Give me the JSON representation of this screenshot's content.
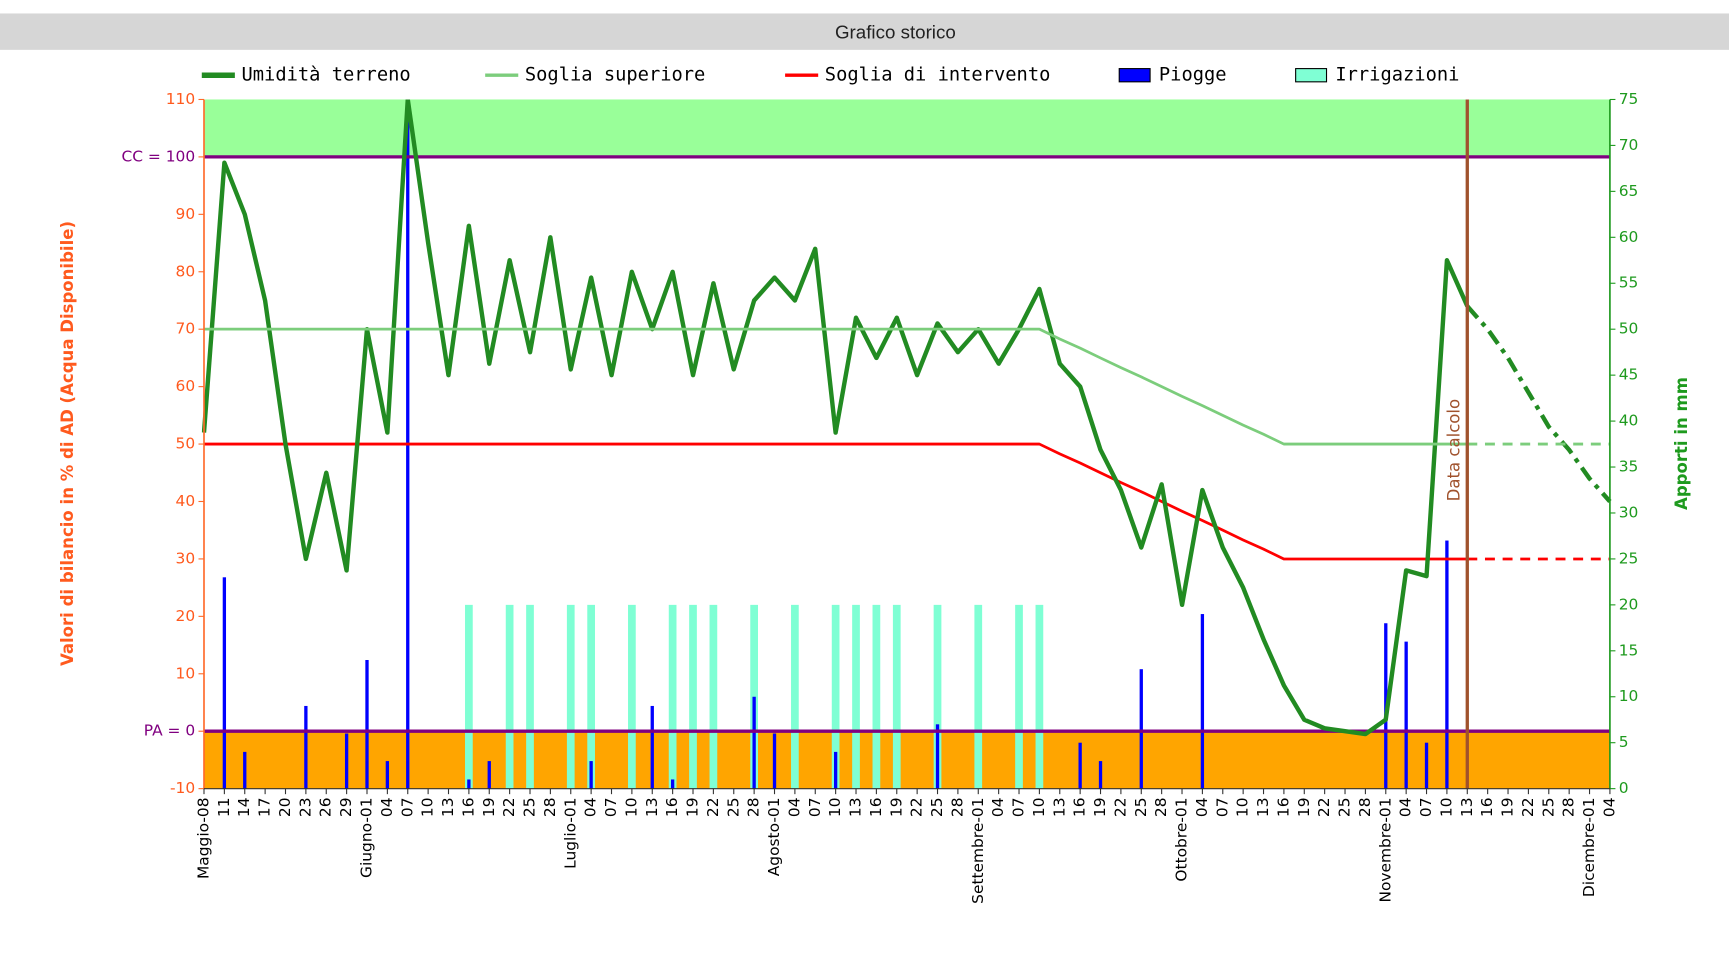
{
  "chart_data": {
    "type": "line",
    "title": "Grafico storico",
    "ylabel": "Valori di bilancio in % di AD (Acqua Disponibile)",
    "y2label": "Apporti in mm",
    "categories": [
      "Maggio-08",
      "11",
      "14",
      "17",
      "20",
      "23",
      "26",
      "29",
      "Giugno-01",
      "04",
      "07",
      "10",
      "13",
      "16",
      "19",
      "22",
      "25",
      "28",
      "Luglio-01",
      "04",
      "07",
      "10",
      "13",
      "16",
      "19",
      "22",
      "25",
      "28",
      "Agosto-01",
      "04",
      "07",
      "10",
      "13",
      "16",
      "19",
      "22",
      "25",
      "28",
      "Settembre-01",
      "04",
      "07",
      "10",
      "13",
      "16",
      "19",
      "22",
      "25",
      "28",
      "Ottobre-01",
      "04",
      "07",
      "10",
      "13",
      "16",
      "19",
      "22",
      "25",
      "28",
      "Novembre-01",
      "04",
      "07",
      "10",
      "13",
      "16",
      "19",
      "22",
      "25",
      "28",
      "Dicembre-01",
      "04"
    ],
    "ylim": [
      -10,
      110
    ],
    "yticks": [
      -10,
      {
        "value": 0,
        "label": "PA = 0"
      },
      10,
      20,
      30,
      40,
      50,
      60,
      70,
      80,
      90,
      {
        "value": 100,
        "label": "CC = 100"
      },
      110
    ],
    "y2lim": [
      0,
      75
    ],
    "y2ticks": [
      0,
      5,
      10,
      15,
      20,
      25,
      30,
      35,
      40,
      45,
      50,
      55,
      60,
      65,
      70,
      75
    ],
    "bands": [
      {
        "from": 100,
        "to": 110,
        "color": "#99ff99"
      },
      {
        "from": -10,
        "to": 0,
        "color": "#ffa500"
      }
    ],
    "reference_color": "#800080",
    "annotations": [
      {
        "text": "Data calcolo",
        "at": "chart_data.categories.62",
        "color": "#a0522d"
      }
    ],
    "series": [
      {
        "name": "Umidità terreno",
        "color": "#228b22",
        "values": [
          52,
          99,
          90,
          75,
          50,
          30,
          45,
          28,
          70,
          52,
          110,
          85,
          62,
          88,
          64,
          82,
          66,
          86,
          63,
          79,
          62,
          80,
          70,
          80,
          62,
          78,
          63,
          75,
          79,
          75,
          84,
          52,
          72,
          65,
          72,
          62,
          71,
          66,
          70,
          64,
          70,
          77,
          64,
          60,
          49,
          42,
          32,
          43,
          22,
          42,
          32,
          25,
          16,
          8,
          2,
          0.5,
          0,
          -0.5,
          2,
          28,
          27,
          82,
          74,
          70,
          65,
          59,
          53,
          49,
          44,
          40
        ]
      },
      {
        "name": "Soglia superiore",
        "color": "#7ccd7c",
        "values": [
          70,
          70,
          70,
          70,
          70,
          70,
          70,
          70,
          70,
          70,
          70,
          70,
          70,
          70,
          70,
          70,
          70,
          70,
          70,
          70,
          70,
          70,
          70,
          70,
          70,
          70,
          70,
          70,
          70,
          70,
          70,
          70,
          70,
          70,
          70,
          70,
          70,
          70,
          70,
          70,
          70,
          70,
          68.3,
          66.7,
          65,
          63.3,
          61.7,
          60,
          58.3,
          56.7,
          55,
          53.3,
          51.7,
          50,
          50,
          50,
          50,
          50,
          50,
          50,
          50,
          50,
          50,
          50,
          50,
          50,
          50,
          50,
          50,
          50
        ]
      },
      {
        "name": "Soglia di intervento",
        "color": "#ff0000",
        "values": [
          50,
          50,
          50,
          50,
          50,
          50,
          50,
          50,
          50,
          50,
          50,
          50,
          50,
          50,
          50,
          50,
          50,
          50,
          50,
          50,
          50,
          50,
          50,
          50,
          50,
          50,
          50,
          50,
          50,
          50,
          50,
          50,
          50,
          50,
          50,
          50,
          50,
          50,
          50,
          50,
          50,
          50,
          48.3,
          46.7,
          45,
          43.3,
          41.7,
          40,
          38.3,
          36.7,
          35,
          33.3,
          31.7,
          30,
          30,
          30,
          30,
          30,
          30,
          30,
          30,
          30,
          30,
          30,
          30,
          30,
          30,
          30,
          30,
          30
        ]
      },
      {
        "name": "Piogge",
        "color": "#0000ff",
        "type": "bar",
        "axis": "y2",
        "values": [
          0,
          23,
          4,
          0,
          0,
          9,
          0,
          6,
          14,
          3,
          75,
          0,
          0,
          1,
          3,
          0,
          0,
          0,
          0,
          3,
          0,
          0,
          9,
          1,
          0,
          0,
          0,
          10,
          6,
          0,
          0,
          4,
          0,
          0,
          0,
          0,
          7,
          0,
          0,
          0,
          0,
          0,
          0,
          5,
          3,
          0,
          13,
          0,
          0,
          19,
          0,
          0,
          0,
          0,
          0,
          0,
          0,
          0,
          18,
          16,
          5,
          27,
          0,
          0,
          0,
          0,
          0,
          0,
          0,
          0
        ]
      },
      {
        "name": "Irrigazioni",
        "color": "#7fffd4",
        "type": "bar",
        "axis": "y2",
        "values": [
          0,
          0,
          0,
          0,
          0,
          0,
          0,
          0,
          0,
          0,
          0,
          0,
          0,
          20,
          0,
          20,
          20,
          0,
          20,
          20,
          0,
          20,
          0,
          20,
          20,
          20,
          0,
          20,
          0,
          20,
          0,
          20,
          20,
          20,
          20,
          0,
          20,
          0,
          20,
          0,
          20,
          20,
          0,
          0,
          0,
          0,
          0,
          0,
          0,
          0,
          0,
          0,
          0,
          0,
          0,
          0,
          0,
          0,
          0,
          0,
          0,
          0,
          0,
          0,
          0,
          0,
          0,
          0,
          0,
          0
        ]
      }
    ]
  }
}
